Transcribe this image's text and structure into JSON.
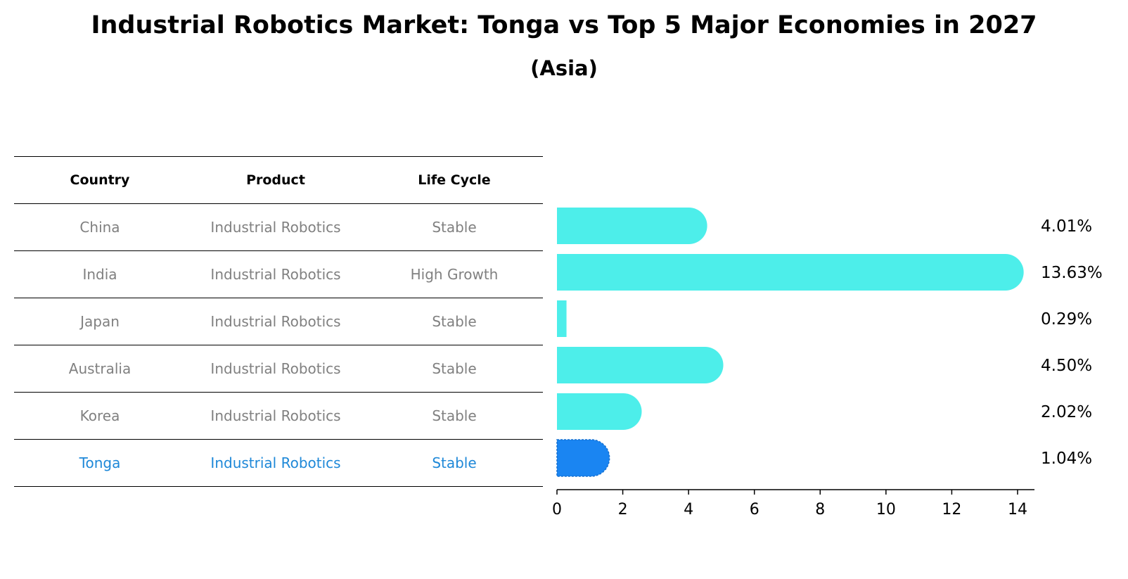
{
  "chart_data": {
    "type": "bar",
    "orientation": "horizontal",
    "title": "Industrial Robotics Market: Tonga vs Top 5 Major Economies in 2027",
    "subtitle": "(Asia)",
    "table": {
      "headers": [
        "Country",
        "Product",
        "Life Cycle"
      ],
      "rows": [
        {
          "country": "China",
          "product": "Industrial Robotics",
          "life_cycle": "Stable"
        },
        {
          "country": "India",
          "product": "Industrial Robotics",
          "life_cycle": "High Growth"
        },
        {
          "country": "Japan",
          "product": "Industrial Robotics",
          "life_cycle": "Stable"
        },
        {
          "country": "Australia",
          "product": "Industrial Robotics",
          "life_cycle": "Stable"
        },
        {
          "country": "Korea",
          "product": "Industrial Robotics",
          "life_cycle": "Stable"
        },
        {
          "country": "Tonga",
          "product": "Industrial Robotics",
          "life_cycle": "Stable"
        }
      ]
    },
    "categories": [
      "China",
      "India",
      "Japan",
      "Australia",
      "Korea",
      "Tonga"
    ],
    "values": [
      4.01,
      13.63,
      0.29,
      4.5,
      2.02,
      1.04
    ],
    "value_labels": [
      "4.01%",
      "13.63%",
      "0.29%",
      "4.50%",
      "2.02%",
      "1.04%"
    ],
    "highlight": "Tonga",
    "xlim": [
      0,
      14.3
    ],
    "xticks": [
      0,
      2,
      4,
      6,
      8,
      10,
      12,
      14
    ],
    "colors": {
      "bar": "#4deeea",
      "highlight": "#1a85f2",
      "highlight_text": "#1e88d8",
      "muted_text": "#808080"
    }
  }
}
